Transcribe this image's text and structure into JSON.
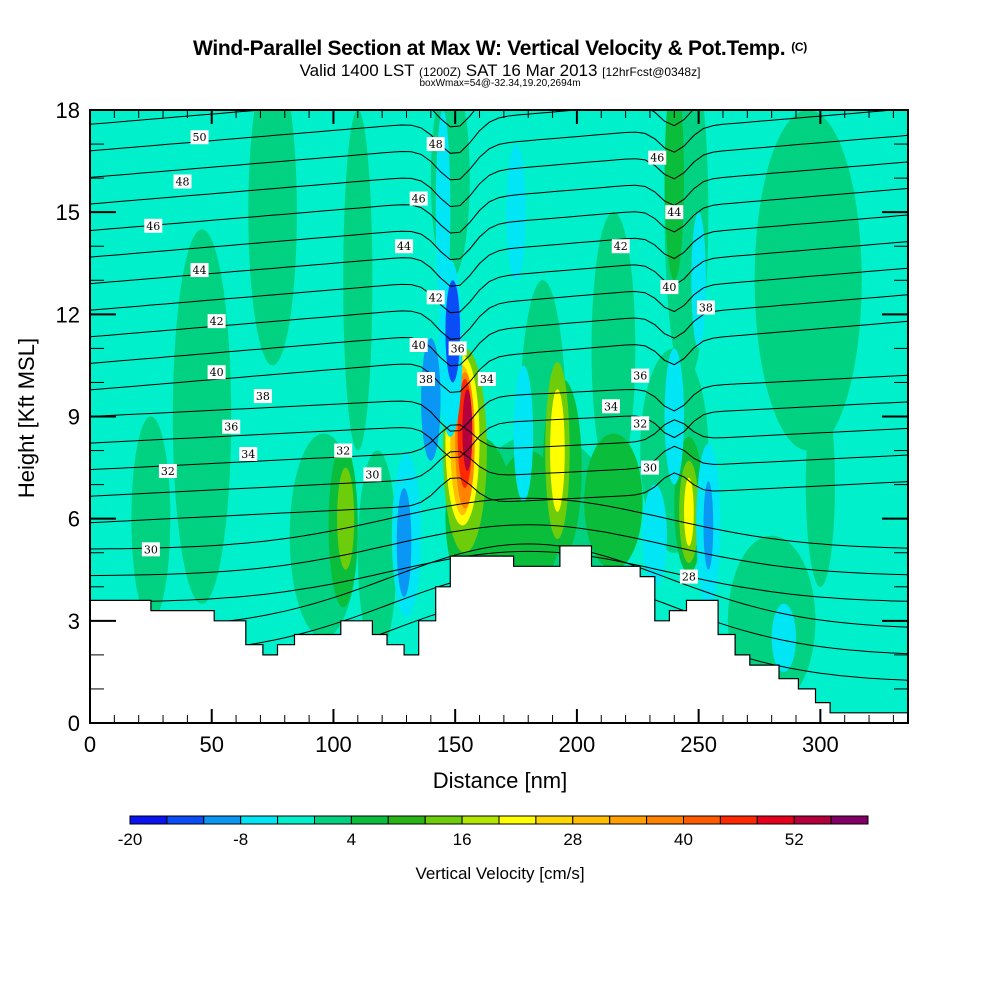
{
  "header": {
    "title": "Wind-Parallel Section at Max W: Vertical Velocity & Pot.Temp.",
    "copyright": "(C)",
    "valid_prefix": "Valid 1400 LST",
    "valid_utc": "(1200Z)",
    "valid_date": "SAT 16 Mar 2013",
    "forecast": "[12hrFcst@0348z]",
    "box_info": "boxWmax=54@-32.34,19.20,2694m"
  },
  "chart_data": {
    "type": "heatmap",
    "title": "Wind-Parallel Section at Max W: Vertical Velocity & Pot.Temp.",
    "xlabel": "Distance [nm]",
    "ylabel": "Height [Kft MSL]",
    "xlim": [
      0,
      336
    ],
    "ylim": [
      0,
      18
    ],
    "xticks": [
      "0",
      "50",
      "100",
      "150",
      "200",
      "250",
      "300"
    ],
    "yticks": [
      "0",
      "3",
      "6",
      "9",
      "12",
      "15",
      "18"
    ],
    "colorbar": {
      "title": "Vertical Velocity [cm/s]",
      "levels": [
        -20,
        -16,
        -12,
        -8,
        -4,
        0,
        4,
        8,
        12,
        16,
        20,
        24,
        28,
        32,
        36,
        40,
        44,
        48,
        52,
        56,
        60
      ],
      "tick_labels": [
        "-20",
        "-8",
        "4",
        "16",
        "28",
        "40",
        "52"
      ],
      "colors": [
        "#0a14f0",
        "#0a4cf5",
        "#0a96f5",
        "#00e6f5",
        "#00f0cc",
        "#00d282",
        "#0abe3c",
        "#28b414",
        "#6ecd0a",
        "#b4e600",
        "#ffff00",
        "#ffd700",
        "#ffbe00",
        "#ffa000",
        "#ff8200",
        "#ff5a00",
        "#ff2800",
        "#e6001e",
        "#b4003c",
        "#820064"
      ]
    },
    "updraft_cores": [
      {
        "x_nm": 154,
        "z_kft": 8.2,
        "w_cms": 54
      },
      {
        "x_nm": 192,
        "z_kft": 7.7,
        "w_cms": 24
      },
      {
        "x_nm": 245,
        "z_kft": 6.3,
        "w_cms": 22
      },
      {
        "x_nm": 105,
        "z_kft": 6.0,
        "w_cms": 14
      }
    ],
    "downdraft_cores": [
      {
        "x_nm": 149,
        "z_kft": 11.5,
        "w_cms": -18
      },
      {
        "x_nm": 128,
        "z_kft": 5.3,
        "w_cms": -12
      },
      {
        "x_nm": 254,
        "z_kft": 5.8,
        "w_cms": -12
      }
    ],
    "contour_labels": [
      {
        "text": "50",
        "x_nm": 45,
        "z_kft": 17.2
      },
      {
        "text": "48",
        "x_nm": 38,
        "z_kft": 15.9
      },
      {
        "text": "46",
        "x_nm": 26,
        "z_kft": 14.6
      },
      {
        "text": "44",
        "x_nm": 45,
        "z_kft": 13.3
      },
      {
        "text": "42",
        "x_nm": 52,
        "z_kft": 11.8
      },
      {
        "text": "40",
        "x_nm": 52,
        "z_kft": 10.3
      },
      {
        "text": "38",
        "x_nm": 71,
        "z_kft": 9.6
      },
      {
        "text": "36",
        "x_nm": 58,
        "z_kft": 8.7
      },
      {
        "text": "34",
        "x_nm": 65,
        "z_kft": 7.9
      },
      {
        "text": "32",
        "x_nm": 32,
        "z_kft": 7.4
      },
      {
        "text": "30",
        "x_nm": 25,
        "z_kft": 5.1
      },
      {
        "text": "32",
        "x_nm": 104,
        "z_kft": 8.0
      },
      {
        "text": "30",
        "x_nm": 116,
        "z_kft": 7.3
      },
      {
        "text": "48",
        "x_nm": 142,
        "z_kft": 17.0
      },
      {
        "text": "46",
        "x_nm": 135,
        "z_kft": 15.4
      },
      {
        "text": "44",
        "x_nm": 129,
        "z_kft": 14.0
      },
      {
        "text": "42",
        "x_nm": 142,
        "z_kft": 12.5
      },
      {
        "text": "40",
        "x_nm": 135,
        "z_kft": 11.1
      },
      {
        "text": "38",
        "x_nm": 138,
        "z_kft": 10.1
      },
      {
        "text": "36",
        "x_nm": 151,
        "z_kft": 11.0
      },
      {
        "text": "34",
        "x_nm": 163,
        "z_kft": 10.1
      },
      {
        "text": "46",
        "x_nm": 233,
        "z_kft": 16.6
      },
      {
        "text": "44",
        "x_nm": 240,
        "z_kft": 15.0
      },
      {
        "text": "42",
        "x_nm": 218,
        "z_kft": 14.0
      },
      {
        "text": "40",
        "x_nm": 238,
        "z_kft": 12.8
      },
      {
        "text": "38",
        "x_nm": 253,
        "z_kft": 12.2
      },
      {
        "text": "36",
        "x_nm": 226,
        "z_kft": 10.2
      },
      {
        "text": "34",
        "x_nm": 214,
        "z_kft": 9.3
      },
      {
        "text": "32",
        "x_nm": 226,
        "z_kft": 8.8
      },
      {
        "text": "30",
        "x_nm": 230,
        "z_kft": 7.5
      },
      {
        "text": "28",
        "x_nm": 246,
        "z_kft": 4.3
      }
    ],
    "terrain_kft": [
      [
        0,
        3.6
      ],
      [
        25,
        3.6
      ],
      [
        25,
        3.3
      ],
      [
        51,
        3.3
      ],
      [
        51,
        3.0
      ],
      [
        64,
        3.0
      ],
      [
        64,
        2.3
      ],
      [
        71,
        2.3
      ],
      [
        71,
        2.0
      ],
      [
        77,
        2.0
      ],
      [
        77,
        2.3
      ],
      [
        84,
        2.3
      ],
      [
        84,
        2.6
      ],
      [
        103,
        2.6
      ],
      [
        103,
        3.0
      ],
      [
        116,
        3.0
      ],
      [
        116,
        2.6
      ],
      [
        122,
        2.6
      ],
      [
        122,
        2.3
      ],
      [
        129,
        2.3
      ],
      [
        129,
        2.0
      ],
      [
        135,
        2.0
      ],
      [
        135,
        3.0
      ],
      [
        142,
        3.0
      ],
      [
        142,
        4.0
      ],
      [
        148,
        4.0
      ],
      [
        148,
        4.9
      ],
      [
        174,
        4.9
      ],
      [
        174,
        4.6
      ],
      [
        193,
        4.6
      ],
      [
        193,
        5.2
      ],
      [
        206,
        5.2
      ],
      [
        206,
        4.6
      ],
      [
        226,
        4.6
      ],
      [
        226,
        4.3
      ],
      [
        232,
        4.3
      ],
      [
        232,
        3.0
      ],
      [
        238,
        3.0
      ],
      [
        238,
        3.3
      ],
      [
        245,
        3.3
      ],
      [
        245,
        3.6
      ],
      [
        258,
        3.6
      ],
      [
        258,
        2.6
      ],
      [
        265,
        2.6
      ],
      [
        265,
        2.0
      ],
      [
        271,
        2.0
      ],
      [
        271,
        1.7
      ],
      [
        283,
        1.7
      ],
      [
        283,
        1.3
      ],
      [
        291,
        1.3
      ],
      [
        291,
        1.0
      ],
      [
        298,
        1.0
      ],
      [
        298,
        0.6
      ],
      [
        304,
        0.6
      ],
      [
        304,
        0.3
      ],
      [
        336,
        0.3
      ]
    ]
  }
}
